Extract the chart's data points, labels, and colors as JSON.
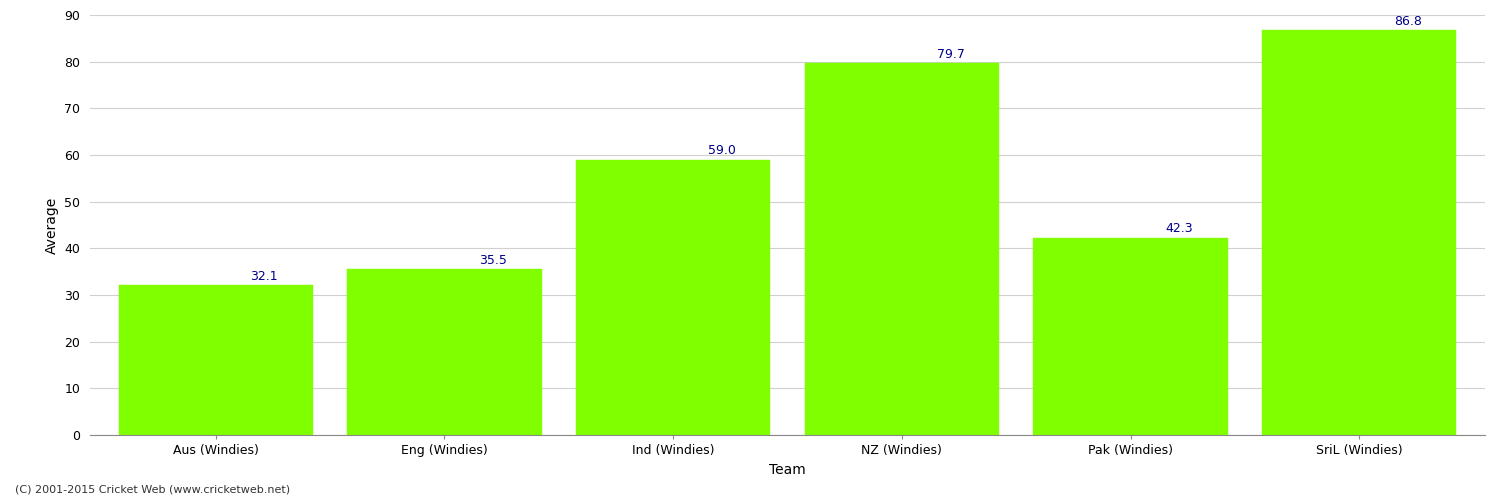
{
  "categories": [
    "Aus (Windies)",
    "Eng (Windies)",
    "Ind (Windies)",
    "NZ (Windies)",
    "Pak (Windies)",
    "SriL (Windies)"
  ],
  "values": [
    32.1,
    35.5,
    59.0,
    79.7,
    42.3,
    86.8
  ],
  "bar_color": "#7FFF00",
  "bar_edge_color": "#7FFF00",
  "label_color": "#00008B",
  "xlabel": "Team",
  "ylabel": "Average",
  "ylim": [
    0,
    90
  ],
  "yticks": [
    0,
    10,
    20,
    30,
    40,
    50,
    60,
    70,
    80,
    90
  ],
  "grid_color": "#d0d0d0",
  "bg_color": "#ffffff",
  "footnote": "(C) 2001-2015 Cricket Web (www.cricketweb.net)",
  "label_fontsize": 9,
  "axis_label_fontsize": 10,
  "tick_fontsize": 9,
  "footnote_fontsize": 8,
  "bar_width": 0.85
}
